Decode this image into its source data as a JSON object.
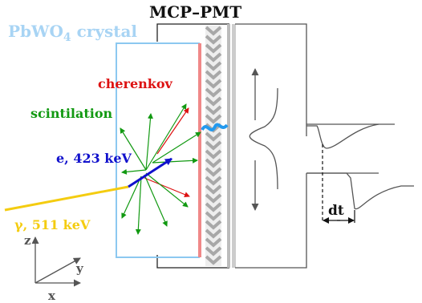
{
  "labels": {
    "crystal": "PbWO",
    "crystal_sub": "4",
    "crystal_rest": " crystal",
    "mcp_pmt": "MCP–PMT",
    "cherenkov": "cherenkov",
    "scintilation": "scintilation",
    "electron": "e, 423 keV",
    "gamma": "γ, 511 keV",
    "dt": "dt",
    "axis_x": "x",
    "axis_y": "y",
    "axis_z": "z"
  },
  "colors": {
    "crystal_outline": "#8cc8f0",
    "crystal_label": "#a8d4f4",
    "cherenkov": "#dd1111",
    "scintilation": "#119911",
    "electron": "#1111cc",
    "gamma": "#f4cc10",
    "photocathode": "#f08888",
    "pmt_wall": "#bbbbbb",
    "signal_highlight": "#2299ee",
    "line": "#555555"
  }
}
